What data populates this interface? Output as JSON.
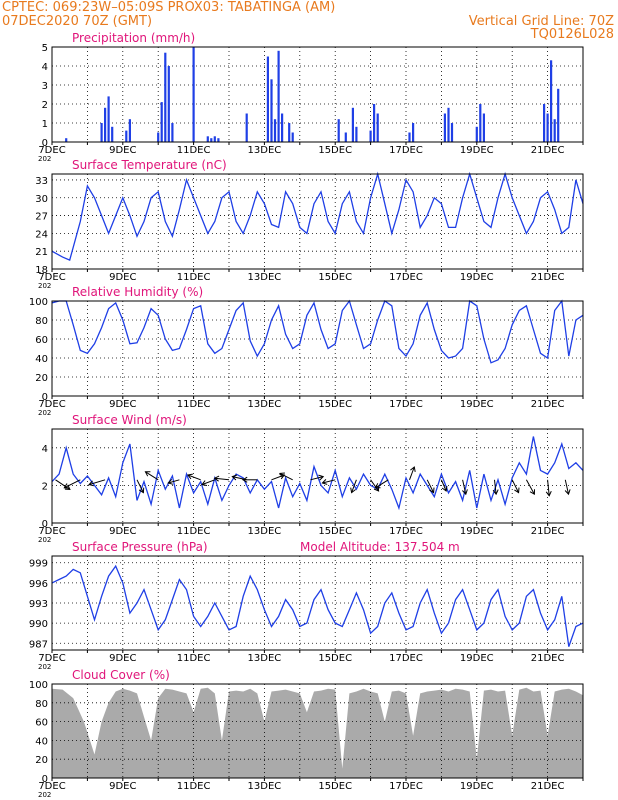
{
  "header": {
    "line1": "CPTEC:   069:23W–05:09S   PROX03: TABATINGA (AM)",
    "line2_left": "07DEC2020 70Z (GMT)",
    "line2_right": "Vertical Grid Line: 70Z",
    "line3_right": "TQ0126L028"
  },
  "colors": {
    "header": "#e87a1e",
    "panel_title": "#e0157a",
    "series": "#1f3fe6",
    "cloud": "#aaaaaa",
    "axis": "#000000"
  },
  "x_tick_labels": [
    "7DEC",
    "9DEC",
    "11DEC",
    "13DEC",
    "15DEC",
    "17DEC",
    "19DEC",
    "21DEC"
  ],
  "year_fragment": "202",
  "extra": {
    "model_altitude": "Model Altitude: 137.504 m"
  },
  "chart_data": [
    {
      "id": "precip",
      "type": "bar",
      "title": "Precipitation (mm/h)",
      "ylim": [
        0,
        5
      ],
      "yticks": [
        "0",
        "1",
        "2",
        "3",
        "4",
        "5"
      ],
      "x_unit": "days since 7DEC 00Z",
      "xlim": [
        0,
        15
      ],
      "series": [
        {
          "x": [
            0.4,
            1.4,
            1.5,
            1.6,
            1.7,
            2.1,
            2.2,
            3.0,
            3.1,
            3.2,
            3.3,
            3.4,
            4.0,
            4.4,
            4.5,
            4.6,
            4.7,
            5.5,
            6.1,
            6.2,
            6.3,
            6.4,
            6.5,
            6.7,
            6.8,
            8.1,
            8.3,
            8.5,
            8.6,
            9.0,
            9.1,
            9.2,
            10.1,
            10.2,
            11.1,
            11.2,
            11.3,
            12.0,
            12.1,
            12.2,
            13.9,
            14.0,
            14.1,
            14.2,
            14.3
          ],
          "values": [
            0.2,
            1.0,
            1.8,
            2.4,
            0.8,
            0.6,
            1.2,
            0.5,
            2.1,
            4.7,
            4.0,
            1.0,
            5.0,
            0.3,
            0.2,
            0.3,
            0.2,
            1.5,
            4.5,
            3.3,
            1.2,
            4.8,
            1.5,
            1.0,
            0.5,
            1.2,
            0.5,
            1.8,
            0.8,
            0.6,
            2.0,
            1.5,
            0.5,
            1.0,
            1.5,
            1.8,
            1.0,
            0.8,
            2.0,
            1.5,
            2.0,
            1.5,
            4.3,
            1.2,
            2.8
          ]
        }
      ]
    },
    {
      "id": "temp",
      "type": "line",
      "title": "Surface Temperature (nC)",
      "ylim": [
        18,
        34
      ],
      "yticks": [
        "18",
        "21",
        "24",
        "27",
        "30",
        "33"
      ],
      "xlim": [
        0,
        15
      ],
      "series": [
        {
          "x": [
            0,
            0.3,
            0.5,
            0.8,
            1.0,
            1.2,
            1.4,
            1.6,
            1.8,
            2.0,
            2.2,
            2.4,
            2.6,
            2.8,
            3.0,
            3.2,
            3.4,
            3.6,
            3.8,
            4.0,
            4.2,
            4.4,
            4.6,
            4.8,
            5.0,
            5.2,
            5.4,
            5.6,
            5.8,
            6.0,
            6.2,
            6.4,
            6.6,
            6.8,
            7.0,
            7.2,
            7.4,
            7.6,
            7.8,
            8.0,
            8.2,
            8.4,
            8.6,
            8.8,
            9.0,
            9.2,
            9.4,
            9.6,
            9.8,
            10.0,
            10.2,
            10.4,
            10.6,
            10.8,
            11.0,
            11.2,
            11.4,
            11.6,
            11.8,
            12.0,
            12.2,
            12.4,
            12.6,
            12.8,
            13.0,
            13.2,
            13.4,
            13.6,
            13.8,
            14.0,
            14.2,
            14.4,
            14.6,
            14.8,
            15.0
          ],
          "values": [
            21,
            20,
            19.5,
            26,
            32,
            30,
            27,
            24,
            27,
            30,
            27,
            23.5,
            26,
            30,
            31,
            26,
            23.5,
            28,
            33,
            30,
            27,
            24,
            26,
            30,
            31,
            26,
            24,
            27,
            31,
            29,
            25.5,
            25,
            31,
            29,
            25,
            24,
            29,
            31,
            26,
            24,
            29,
            31,
            26,
            24,
            30,
            34,
            29,
            24,
            28,
            33,
            31,
            25,
            27,
            30,
            29,
            25,
            25,
            30,
            34,
            30,
            26,
            25,
            30,
            34,
            30,
            27,
            24,
            26,
            30,
            31,
            28,
            24,
            25,
            33,
            29
          ]
        }
      ]
    },
    {
      "id": "rh",
      "type": "line",
      "title": "Relative Humidity (%)",
      "ylim": [
        0,
        100
      ],
      "yticks": [
        "0",
        "20",
        "40",
        "60",
        "80",
        "100"
      ],
      "xlim": [
        0,
        15
      ],
      "series": [
        {
          "x": [
            0,
            0.2,
            0.4,
            0.6,
            0.8,
            1.0,
            1.2,
            1.4,
            1.6,
            1.8,
            2.0,
            2.2,
            2.4,
            2.6,
            2.8,
            3.0,
            3.2,
            3.4,
            3.6,
            3.8,
            4.0,
            4.2,
            4.4,
            4.6,
            4.8,
            5.0,
            5.2,
            5.4,
            5.6,
            5.8,
            6.0,
            6.2,
            6.4,
            6.6,
            6.8,
            7.0,
            7.2,
            7.4,
            7.6,
            7.8,
            8.0,
            8.2,
            8.4,
            8.6,
            8.8,
            9.0,
            9.2,
            9.4,
            9.6,
            9.8,
            10.0,
            10.2,
            10.4,
            10.6,
            10.8,
            11.0,
            11.2,
            11.4,
            11.6,
            11.8,
            12.0,
            12.2,
            12.4,
            12.6,
            12.8,
            13.0,
            13.2,
            13.4,
            13.6,
            13.8,
            14.0,
            14.2,
            14.4,
            14.6,
            14.8,
            15.0
          ],
          "values": [
            98,
            100,
            100,
            75,
            48,
            45,
            55,
            72,
            92,
            98,
            80,
            55,
            56,
            72,
            92,
            85,
            60,
            48,
            50,
            70,
            92,
            95,
            55,
            45,
            50,
            70,
            90,
            98,
            58,
            42,
            55,
            80,
            95,
            65,
            50,
            55,
            85,
            98,
            70,
            50,
            55,
            90,
            100,
            75,
            50,
            55,
            80,
            100,
            95,
            50,
            42,
            55,
            85,
            98,
            70,
            48,
            40,
            42,
            50,
            100,
            95,
            60,
            35,
            38,
            50,
            75,
            90,
            95,
            70,
            45,
            40,
            90,
            100,
            42,
            80,
            85
          ]
        }
      ]
    },
    {
      "id": "wind",
      "type": "line",
      "title": "Surface Wind (m/s)",
      "ylim": [
        0,
        5
      ],
      "yticks": [
        "0",
        "2",
        "4"
      ],
      "xlim": [
        0,
        15
      ],
      "series": [
        {
          "x": [
            0,
            0.2,
            0.4,
            0.6,
            0.8,
            1.0,
            1.2,
            1.4,
            1.6,
            1.8,
            2.0,
            2.2,
            2.4,
            2.6,
            2.8,
            3.0,
            3.2,
            3.4,
            3.6,
            3.8,
            4.0,
            4.2,
            4.4,
            4.6,
            4.8,
            5.0,
            5.2,
            5.4,
            5.6,
            5.8,
            6.0,
            6.2,
            6.4,
            6.6,
            6.8,
            7.0,
            7.2,
            7.4,
            7.6,
            7.8,
            8.0,
            8.2,
            8.4,
            8.6,
            8.8,
            9.0,
            9.2,
            9.4,
            9.6,
            9.8,
            10.0,
            10.2,
            10.4,
            10.6,
            10.8,
            11.0,
            11.2,
            11.4,
            11.6,
            11.8,
            12.0,
            12.2,
            12.4,
            12.6,
            12.8,
            13.0,
            13.2,
            13.4,
            13.6,
            13.8,
            14.0,
            14.2,
            14.4,
            14.6,
            14.8,
            15.0
          ],
          "values": [
            2.2,
            2.6,
            4.0,
            2.6,
            2.1,
            2.5,
            2.0,
            1.5,
            2.4,
            1.4,
            3.2,
            4.2,
            1.2,
            2.2,
            1.0,
            2.8,
            1.8,
            2.5,
            0.8,
            2.6,
            1.6,
            2.2,
            1.0,
            2.4,
            1.2,
            2.0,
            2.6,
            2.4,
            1.6,
            2.3,
            1.8,
            2.2,
            0.8,
            2.4,
            1.4,
            2.1,
            1.2,
            3.0,
            2.0,
            1.6,
            2.8,
            1.4,
            2.4,
            1.8,
            2.6,
            2.0,
            1.8,
            2.6,
            1.8,
            0.8,
            2.4,
            1.6,
            2.6,
            2.0,
            1.4,
            2.6,
            1.6,
            2.2,
            1.2,
            2.8,
            0.8,
            2.6,
            1.2,
            2.3,
            1.0,
            2.4,
            3.2,
            2.6,
            4.6,
            2.8,
            2.6,
            3.2,
            4.2,
            2.9,
            3.2,
            2.8
          ]
        }
      ],
      "vectors": {
        "x": [
          0.1,
          0.8,
          1.5,
          2.4,
          3.0,
          3.6,
          4.2,
          4.6,
          5.0,
          5.5,
          5.8,
          6.2,
          6.8,
          7.3,
          8.0,
          8.6,
          9.0,
          9.5,
          10.1,
          10.6,
          11.0,
          11.6,
          12.5,
          13.0,
          13.4,
          14.0,
          14.5
        ],
        "u": [
          0.9,
          -1,
          -1,
          0.4,
          -0.8,
          -0.7,
          -0.8,
          -0.8,
          -0.9,
          -0.9,
          -0.9,
          0.8,
          -0.8,
          0.8,
          -0.8,
          -0.3,
          0.5,
          -0.8,
          0.3,
          0.4,
          0.3,
          0.2,
          0.1,
          0.4,
          0.5,
          0.1,
          0.2
        ],
        "v": [
          -0.6,
          -0.5,
          -0.3,
          -0.8,
          0.5,
          -0.2,
          0.3,
          -0.3,
          0.1,
          0.2,
          0,
          0.3,
          0.4,
          0.2,
          -0.2,
          -0.8,
          -0.7,
          -0.5,
          0.8,
          -0.8,
          -0.7,
          -0.9,
          -0.9,
          -0.8,
          -0.9,
          -1,
          -0.9
        ]
      }
    },
    {
      "id": "pres",
      "type": "line",
      "title": "Surface Pressure (hPa)",
      "ylim": [
        986,
        1000
      ],
      "yticks": [
        "987",
        "990",
        "993",
        "996",
        "999"
      ],
      "xlim": [
        0,
        15
      ],
      "series": [
        {
          "x": [
            0,
            0.2,
            0.4,
            0.6,
            0.8,
            1.0,
            1.2,
            1.4,
            1.6,
            1.8,
            2.0,
            2.2,
            2.4,
            2.6,
            2.8,
            3.0,
            3.2,
            3.4,
            3.6,
            3.8,
            4.0,
            4.2,
            4.4,
            4.6,
            4.8,
            5.0,
            5.2,
            5.4,
            5.6,
            5.8,
            6.0,
            6.2,
            6.4,
            6.6,
            6.8,
            7.0,
            7.2,
            7.4,
            7.6,
            7.8,
            8.0,
            8.2,
            8.4,
            8.6,
            8.8,
            9.0,
            9.2,
            9.4,
            9.6,
            9.8,
            10.0,
            10.2,
            10.4,
            10.6,
            10.8,
            11.0,
            11.2,
            11.4,
            11.6,
            11.8,
            12.0,
            12.2,
            12.4,
            12.6,
            12.8,
            13.0,
            13.2,
            13.4,
            13.6,
            13.8,
            14.0,
            14.2,
            14.4,
            14.6,
            14.8,
            15.0
          ],
          "values": [
            996,
            996.5,
            997,
            998,
            997.5,
            994,
            990.5,
            994,
            997,
            998.5,
            996,
            991.5,
            993,
            995,
            992,
            989,
            990.5,
            993.5,
            996.5,
            995,
            991,
            989.5,
            991,
            993,
            991,
            989,
            989.5,
            994,
            997,
            995,
            992,
            989.5,
            991,
            993.5,
            992,
            989.5,
            990,
            993.5,
            995,
            992,
            990,
            989.5,
            992,
            994.5,
            992,
            988.5,
            989.5,
            993,
            994.5,
            991.5,
            989,
            989.5,
            993,
            995,
            991.5,
            988.5,
            990,
            993.5,
            995,
            992,
            989,
            990,
            993.5,
            995,
            991,
            989,
            990,
            994,
            995,
            991.5,
            989,
            990.5,
            994,
            986.5,
            989.5,
            990
          ]
        }
      ]
    },
    {
      "id": "cloud",
      "type": "area",
      "title": "Cloud Cover (%)",
      "ylim": [
        0,
        100
      ],
      "yticks": [
        "0",
        "20",
        "40",
        "60",
        "80",
        "100"
      ],
      "xlim": [
        0,
        15
      ],
      "series": [
        {
          "x": [
            0,
            0.3,
            0.6,
            0.9,
            1.2,
            1.4,
            1.6,
            1.8,
            2.0,
            2.2,
            2.4,
            2.6,
            2.8,
            3.0,
            3.2,
            3.4,
            3.6,
            3.8,
            4.0,
            4.2,
            4.4,
            4.6,
            4.8,
            5.0,
            5.2,
            5.4,
            5.6,
            5.8,
            6.0,
            6.2,
            6.4,
            6.6,
            6.8,
            7.0,
            7.2,
            7.4,
            7.6,
            7.8,
            8.0,
            8.2,
            8.4,
            8.6,
            8.8,
            9.0,
            9.2,
            9.4,
            9.6,
            9.8,
            10.0,
            10.2,
            10.4,
            10.6,
            10.8,
            11.0,
            11.2,
            11.4,
            11.6,
            11.8,
            12.0,
            12.2,
            12.4,
            12.6,
            12.8,
            13.0,
            13.2,
            13.4,
            13.6,
            13.8,
            14.0,
            14.2,
            14.4,
            14.6,
            14.8,
            15.0
          ],
          "values": [
            95,
            94,
            85,
            60,
            25,
            60,
            80,
            92,
            95,
            93,
            90,
            65,
            40,
            85,
            95,
            94,
            92,
            90,
            70,
            95,
            96,
            90,
            40,
            92,
            93,
            92,
            95,
            90,
            60,
            92,
            93,
            94,
            92,
            90,
            70,
            92,
            93,
            95,
            94,
            10,
            90,
            92,
            95,
            92,
            90,
            60,
            92,
            93,
            90,
            45,
            90,
            92,
            93,
            94,
            92,
            95,
            94,
            92,
            20,
            93,
            94,
            92,
            93,
            45,
            94,
            96,
            92,
            93,
            45,
            92,
            94,
            95,
            92,
            88
          ]
        }
      ]
    }
  ]
}
